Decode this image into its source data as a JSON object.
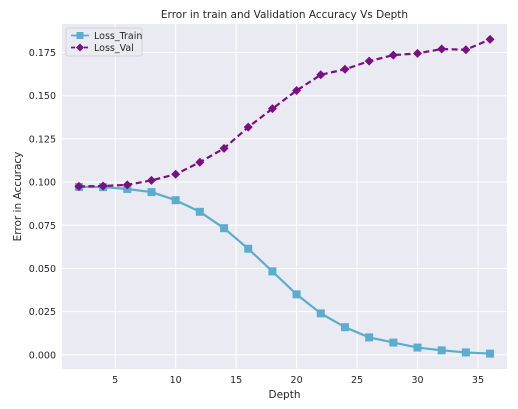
{
  "chart_data": {
    "type": "line",
    "title": "Error in train and Validation Accuracy Vs Depth",
    "xlabel": "Depth",
    "ylabel": "Error in Accuracy",
    "xlim": [
      0.6,
      37.4
    ],
    "ylim": [
      -0.0082,
      0.1915
    ],
    "xticks": [
      5,
      10,
      15,
      20,
      25,
      30,
      35
    ],
    "yticks": [
      0.0,
      0.025,
      0.05,
      0.075,
      0.1,
      0.125,
      0.15,
      0.175
    ],
    "xtick_labels": [
      "5",
      "10",
      "15",
      "20",
      "25",
      "30",
      "35"
    ],
    "ytick_labels": [
      "0.000",
      "0.025",
      "0.050",
      "0.075",
      "0.100",
      "0.125",
      "0.150",
      "0.175"
    ],
    "grid": true,
    "legend_position": "top-left",
    "x": [
      2,
      4,
      6,
      8,
      10,
      12,
      14,
      16,
      18,
      20,
      22,
      24,
      26,
      28,
      30,
      32,
      34,
      36
    ],
    "series": [
      {
        "name": "Loss_Train",
        "color": "#5aadcc",
        "marker": "square",
        "linestyle": "solid",
        "values": [
          0.0972,
          0.0971,
          0.096,
          0.0942,
          0.0895,
          0.0828,
          0.0733,
          0.0614,
          0.0483,
          0.035,
          0.024,
          0.016,
          0.0101,
          0.0071,
          0.0042,
          0.0026,
          0.0014,
          0.0007
        ]
      },
      {
        "name": "Loss_Val",
        "color": "#7b0e85",
        "marker": "diamond",
        "linestyle": "dashed",
        "values": [
          0.0975,
          0.0977,
          0.0984,
          0.101,
          0.1045,
          0.1115,
          0.1195,
          0.1318,
          0.1425,
          0.153,
          0.1621,
          0.1653,
          0.17,
          0.1735,
          0.1745,
          0.177,
          0.1766,
          0.1826
        ]
      }
    ]
  }
}
